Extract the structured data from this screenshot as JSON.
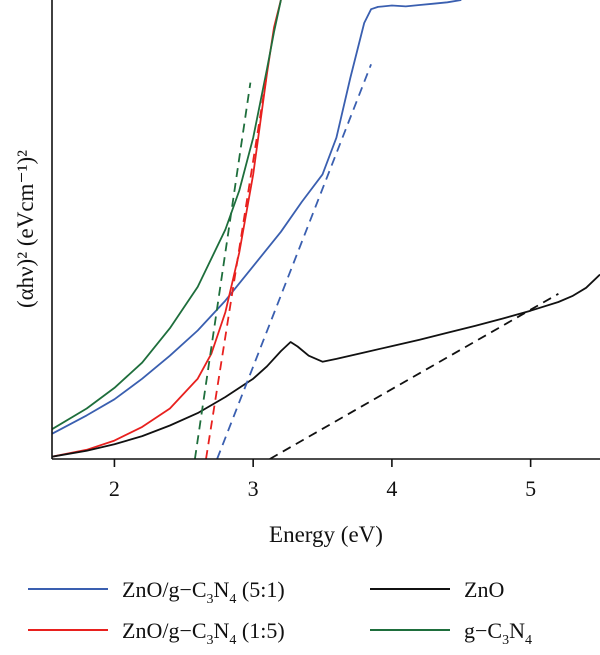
{
  "chart_data": {
    "type": "line",
    "xlabel": "Energy (eV)",
    "ylabel": "(αhν)² (eVcm⁻¹)²",
    "xlim": [
      1.55,
      5.5
    ],
    "ylim": [
      0,
      100
    ],
    "x_ticks": [
      2,
      3,
      4,
      5
    ],
    "y_ticks_shown": false,
    "grid": false,
    "legend_position": "bottom",
    "series": [
      {
        "name": "ZnO/g−C3N4 (5:1)",
        "color": "#3a5fb0",
        "style": "solid",
        "x": [
          1.55,
          1.8,
          2.0,
          2.2,
          2.4,
          2.6,
          2.8,
          3.0,
          3.2,
          3.35,
          3.5,
          3.6,
          3.7,
          3.8,
          3.85,
          3.9,
          4.0,
          4.1,
          4.2,
          4.3,
          4.4,
          4.5
        ],
        "y": [
          5.5,
          9.5,
          13.0,
          17.5,
          22.5,
          28.0,
          34.5,
          42.0,
          49.5,
          56.0,
          62.0,
          70.0,
          83.0,
          95.0,
          98.0,
          98.5,
          98.8,
          98.6,
          98.9,
          99.2,
          99.5,
          100
        ]
      },
      {
        "name": "ZnO/g−C3N4 (1:5)",
        "color": "#e8201e",
        "style": "solid",
        "x": [
          1.55,
          1.8,
          2.0,
          2.2,
          2.4,
          2.6,
          2.7,
          2.8,
          2.9,
          3.0,
          3.05,
          3.1,
          3.15,
          3.2
        ],
        "y": [
          0.5,
          2.0,
          4.0,
          7.0,
          11.0,
          17.5,
          23.0,
          32.0,
          45.0,
          62.0,
          73.0,
          84.0,
          94.0,
          100
        ]
      },
      {
        "name": "ZnO",
        "color": "#111111",
        "style": "solid",
        "x": [
          1.55,
          1.8,
          2.0,
          2.2,
          2.4,
          2.6,
          2.8,
          3.0,
          3.1,
          3.2,
          3.27,
          3.32,
          3.4,
          3.5,
          3.6,
          3.8,
          4.0,
          4.2,
          4.4,
          4.6,
          4.8,
          5.0,
          5.2,
          5.3,
          5.4,
          5.5
        ],
        "y": [
          0.5,
          1.8,
          3.2,
          5.0,
          7.3,
          10.0,
          13.5,
          17.5,
          20.2,
          23.5,
          25.5,
          24.5,
          22.5,
          21.2,
          21.8,
          23.2,
          24.6,
          26.0,
          27.5,
          29.0,
          30.6,
          32.3,
          34.2,
          35.5,
          37.3,
          40.2
        ]
      },
      {
        "name": "g−C3N4",
        "color": "#1e6e3c",
        "style": "solid",
        "x": [
          1.55,
          1.8,
          2.0,
          2.2,
          2.4,
          2.6,
          2.8,
          2.9,
          3.0,
          3.1,
          3.15,
          3.2
        ],
        "y": [
          6.5,
          11.0,
          15.5,
          21.0,
          28.5,
          37.5,
          50.0,
          58.5,
          70.0,
          85.0,
          93.0,
          100
        ]
      },
      {
        "name": "",
        "color": "#3a5fb0",
        "style": "dashed",
        "x": [
          2.74,
          3.85
        ],
        "y": [
          0,
          86
        ]
      },
      {
        "name": "",
        "color": "#e8201e",
        "style": "dashed",
        "x": [
          2.66,
          3.1
        ],
        "y": [
          0,
          84
        ]
      },
      {
        "name": "",
        "color": "#1e6e3c",
        "style": "dashed",
        "x": [
          2.58,
          2.98
        ],
        "y": [
          0,
          82
        ]
      },
      {
        "name": "",
        "color": "#111111",
        "style": "dashed",
        "x": [
          3.12,
          5.2
        ],
        "y": [
          0,
          36
        ]
      }
    ]
  },
  "legend": {
    "items": [
      {
        "main": "ZnO/g−C",
        "sub1": "3",
        "mid": "N",
        "sub2": "4",
        "suffix": " (5:1)",
        "color": "#3a5fb0"
      },
      {
        "main": "ZnO",
        "sub1": "",
        "mid": "",
        "sub2": "",
        "suffix": "",
        "color": "#111111"
      },
      {
        "main": "ZnO/g−C",
        "sub1": "3",
        "mid": "N",
        "sub2": "4",
        "suffix": " (1:5)",
        "color": "#e8201e"
      },
      {
        "main": "g−C",
        "sub1": "3",
        "mid": "N",
        "sub2": "4",
        "suffix": "",
        "color": "#1e6e3c"
      }
    ]
  }
}
